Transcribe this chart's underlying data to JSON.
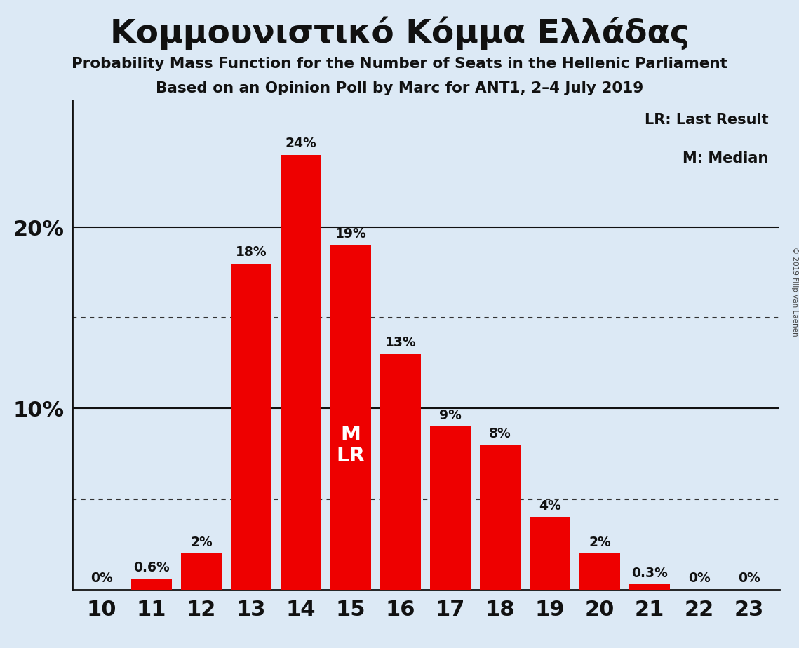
{
  "title": "Κομμουνιστικό Κόμμα Ελλάδας",
  "subtitle1": "Probability Mass Function for the Number of Seats in the Hellenic Parliament",
  "subtitle2": "Based on an Opinion Poll by Marc for ANT1, 2–4 July 2019",
  "copyright": "© 2019 Filip van Laenen",
  "seats": [
    10,
    11,
    12,
    13,
    14,
    15,
    16,
    17,
    18,
    19,
    20,
    21,
    22,
    23
  ],
  "probabilities": [
    0.0,
    0.6,
    2.0,
    18.0,
    24.0,
    19.0,
    13.0,
    9.0,
    8.0,
    4.0,
    2.0,
    0.3,
    0.0,
    0.0
  ],
  "bar_color": "#ee0000",
  "bg_color": "#dce9f5",
  "axis_color": "#111111",
  "text_color": "#111111",
  "bar_label_color": "#111111",
  "ml_seat": 15,
  "median_label": "M",
  "lr_label": "LR",
  "label_inside_color": "#ffffff",
  "yticks": [
    10,
    20
  ],
  "dotted_lines": [
    5,
    15
  ],
  "ylim": [
    0,
    27
  ],
  "legend_lr": "LR: Last Result",
  "legend_m": "M: Median"
}
